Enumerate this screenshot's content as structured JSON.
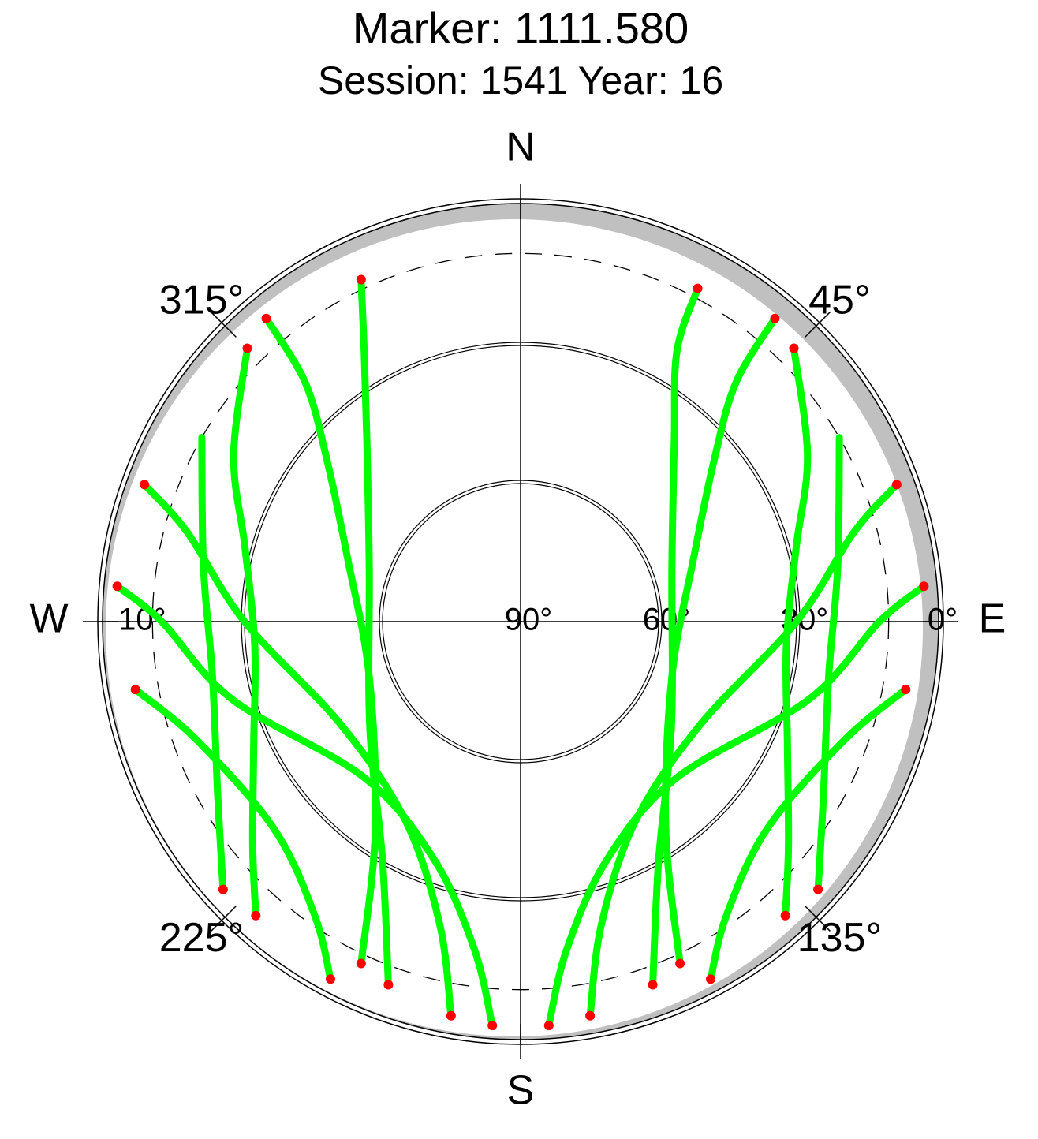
{
  "chart_data": {
    "type": "skyplot",
    "title": "Marker: 1111.580",
    "subtitle": "Session: 1541 Year: 16",
    "rlim": [
      0,
      90
    ],
    "rticks": [
      {
        "value": 0,
        "label": "0°"
      },
      {
        "value": 30,
        "label": "30°"
      },
      {
        "value": 60,
        "label": "60°"
      },
      {
        "value": 90,
        "label": "90°"
      }
    ],
    "mask": {
      "value": 10,
      "label": "10°"
    },
    "azticks": [
      {
        "value": 0,
        "label": "N"
      },
      {
        "value": 45,
        "label": "45°"
      },
      {
        "value": 90,
        "label": "E"
      },
      {
        "value": 135,
        "label": "135°"
      },
      {
        "value": 180,
        "label": "S"
      },
      {
        "value": 225,
        "label": "225°"
      },
      {
        "value": 270,
        "label": "W"
      },
      {
        "value": 315,
        "label": "315°"
      }
    ],
    "color": "#00ff00",
    "below_mask_color": "#ff0000",
    "tracks": [
      {
        "az": [
          320,
          318,
          310,
          290,
          250,
          215,
          205
        ],
        "el": [
          4,
          20,
          35,
          50,
          55,
          35,
          8
        ]
      },
      {
        "az": [
          40,
          42,
          50,
          70,
          110,
          145,
          155
        ],
        "el": [
          4,
          20,
          35,
          50,
          55,
          35,
          8
        ]
      },
      {
        "az": [
          315,
          300,
          285,
          265,
          245,
          230,
          222
        ],
        "el": [
          6,
          18,
          28,
          32,
          26,
          14,
          4
        ]
      },
      {
        "az": [
          45,
          60,
          75,
          95,
          115,
          130,
          138
        ],
        "el": [
          6,
          18,
          28,
          32,
          26,
          14,
          4
        ]
      },
      {
        "az": [
          290,
          285,
          270,
          240,
          210,
          195,
          190
        ],
        "el": [
          3,
          15,
          30,
          45,
          40,
          22,
          3
        ]
      },
      {
        "az": [
          70,
          75,
          90,
          120,
          150,
          165,
          170
        ],
        "el": [
          3,
          15,
          30,
          45,
          40,
          22,
          3
        ]
      },
      {
        "az": [
          275,
          270,
          255,
          225,
          200,
          188,
          184
        ],
        "el": [
          2,
          12,
          25,
          42,
          35,
          18,
          2
        ]
      },
      {
        "az": [
          85,
          90,
          105,
          135,
          160,
          172,
          176
        ],
        "el": [
          2,
          12,
          25,
          42,
          35,
          18,
          2
        ]
      },
      {
        "az": [
          335,
          330,
          320,
          290,
          235,
          210,
          200
        ],
        "el": [
          8,
          22,
          38,
          55,
          50,
          30,
          6
        ]
      },
      {
        "az": [
          28,
          30,
          40,
          70,
          125,
          150,
          160
        ],
        "el": [
          8,
          22,
          38,
          55,
          50,
          30,
          6
        ]
      },
      {
        "az": [
          300,
          280,
          260,
          240,
          228
        ],
        "el": [
          10,
          20,
          22,
          14,
          3
        ]
      },
      {
        "az": [
          60,
          80,
          100,
          120,
          132
        ],
        "el": [
          10,
          20,
          22,
          14,
          3
        ]
      },
      {
        "az": [
          260,
          250,
          230,
          215,
          208
        ],
        "el": [
          5,
          15,
          20,
          12,
          2
        ]
      },
      {
        "az": [
          100,
          110,
          130,
          145,
          152
        ],
        "el": [
          5,
          15,
          20,
          12,
          2
        ]
      }
    ]
  }
}
